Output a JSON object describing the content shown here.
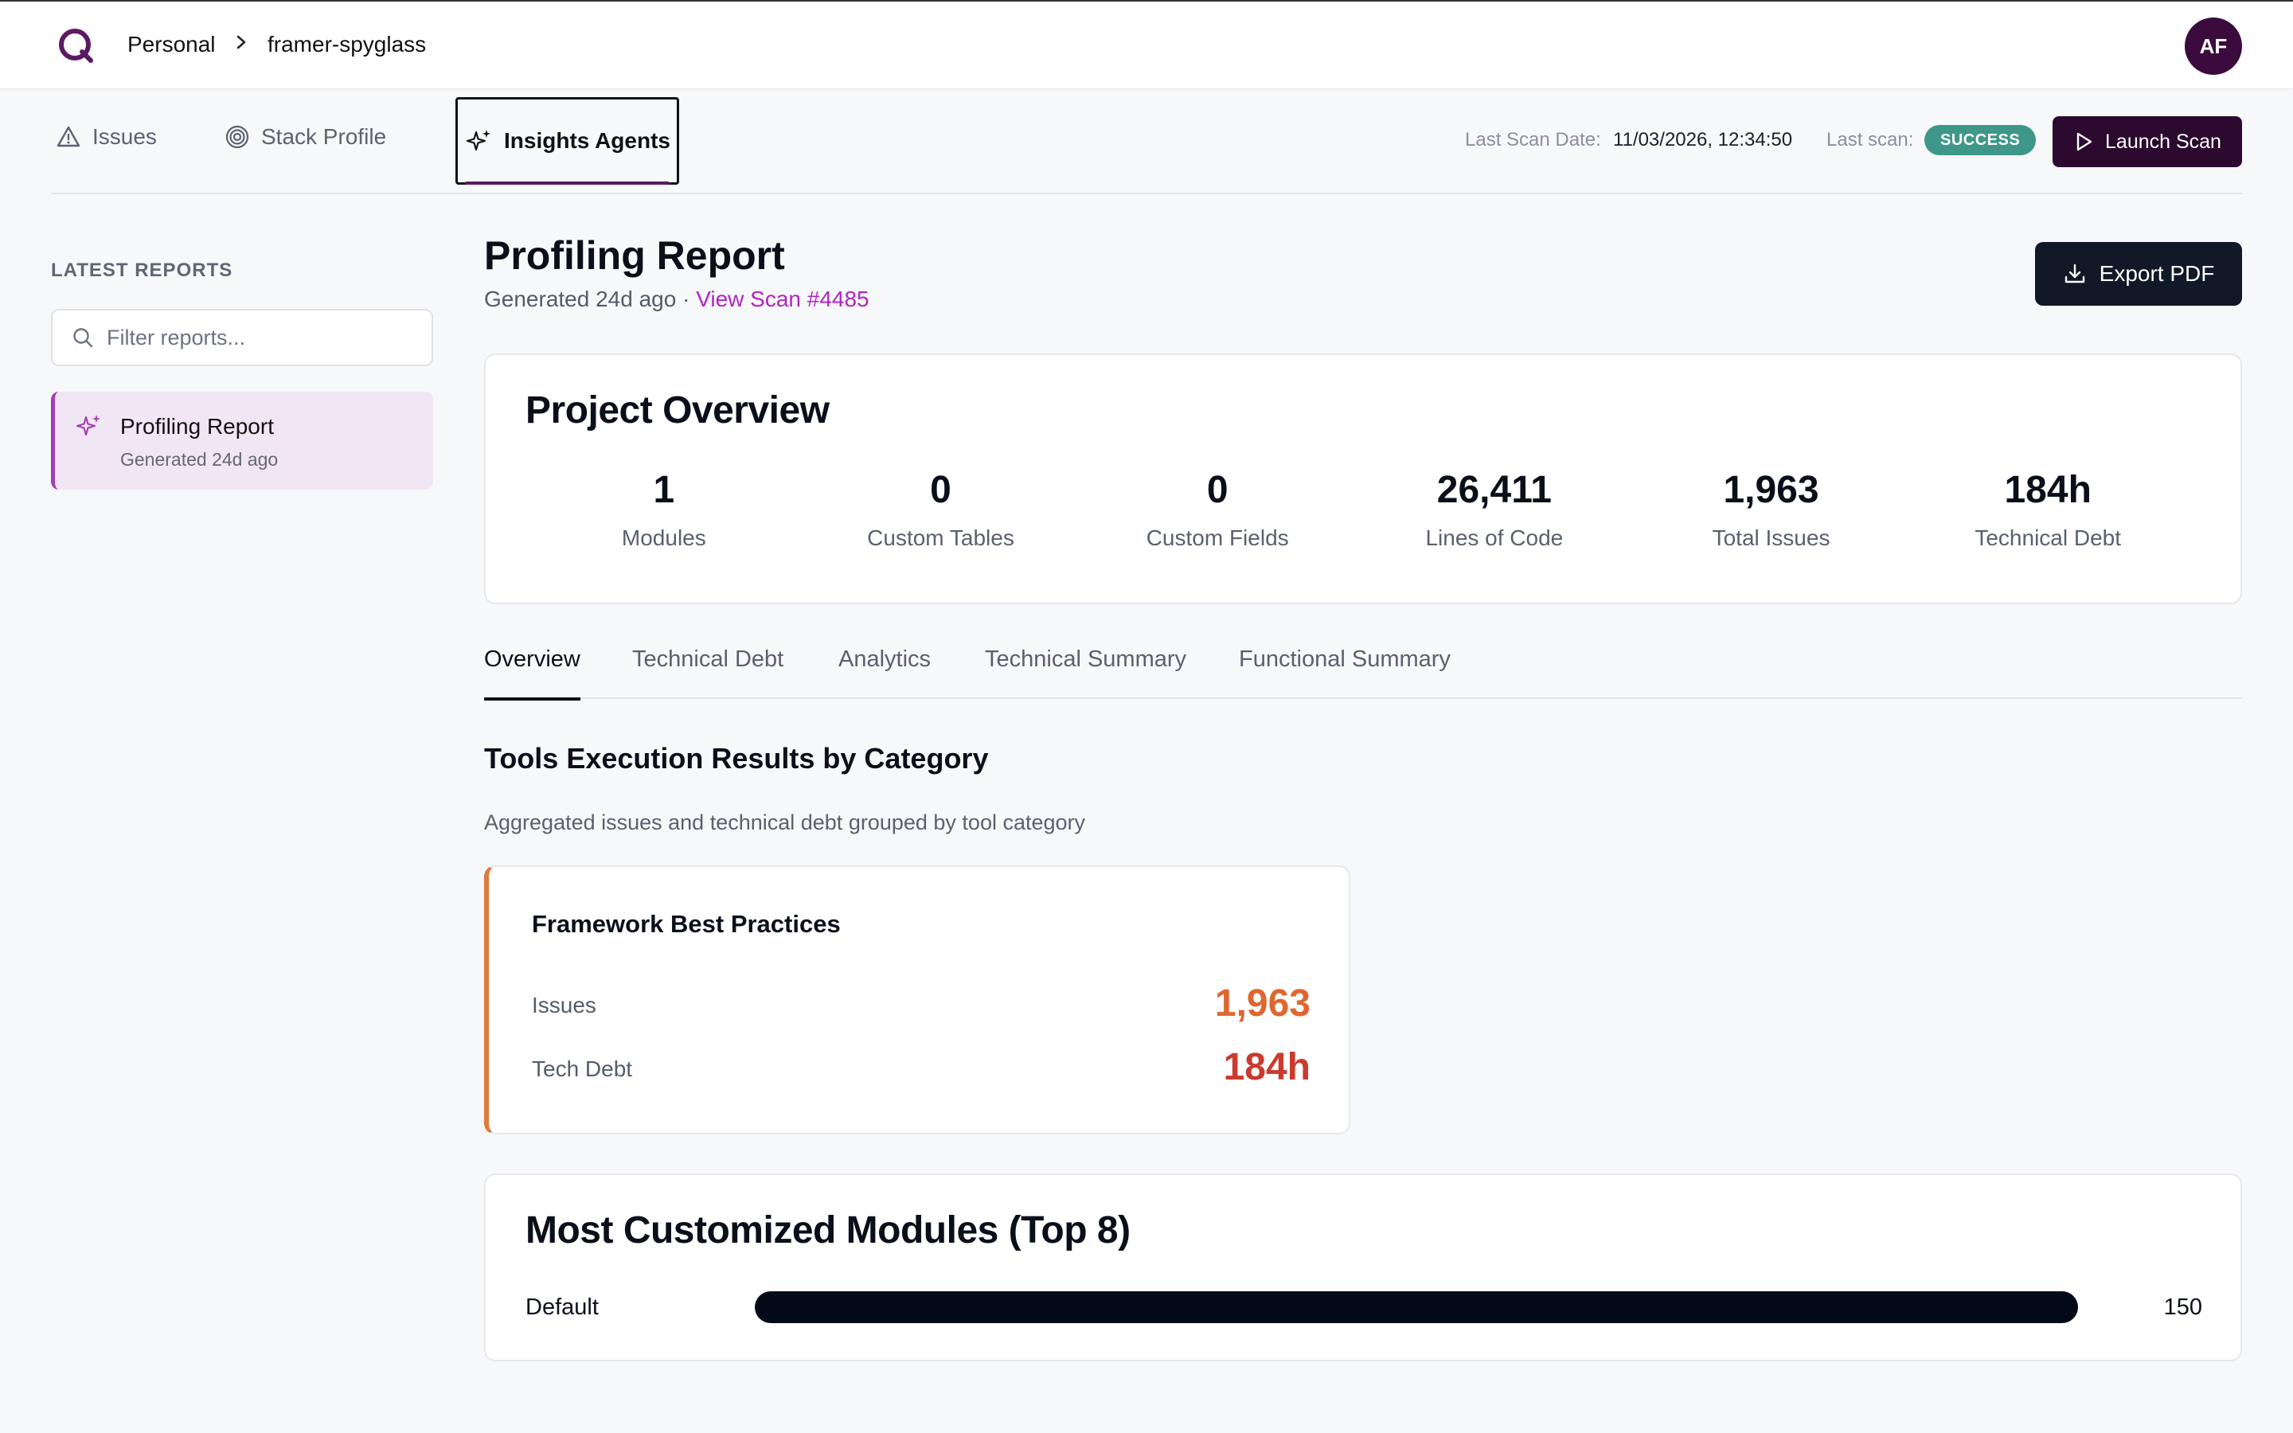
{
  "breadcrumb": {
    "workspace": "Personal",
    "project": "framer-spyglass"
  },
  "user": {
    "initials": "AF"
  },
  "nav": {
    "tabs": [
      {
        "label": "Issues",
        "icon": "warning-triangle-icon"
      },
      {
        "label": "Stack Profile",
        "icon": "target-icon"
      },
      {
        "label": "Insights Agents",
        "icon": "sparkles-icon",
        "active": true
      }
    ]
  },
  "scan": {
    "date_label": "Last Scan Date:",
    "date_value": "11/03/2026, 12:34:50",
    "status_label": "Last scan:",
    "status": "SUCCESS",
    "status_color": "#3e9788",
    "launch_label": "Launch Scan"
  },
  "sidebar": {
    "heading": "LATEST REPORTS",
    "filter_placeholder": "Filter reports...",
    "reports": [
      {
        "title": "Profiling Report",
        "subtitle": "Generated 24d ago",
        "active": true
      }
    ]
  },
  "report": {
    "title": "Profiling Report",
    "generated": "Generated 24d ago",
    "separator": " · ",
    "scan_link": "View Scan #4485",
    "export_label": "Export PDF"
  },
  "overview": {
    "title": "Project Overview",
    "stats": [
      {
        "value": "1",
        "label": "Modules"
      },
      {
        "value": "0",
        "label": "Custom Tables"
      },
      {
        "value": "0",
        "label": "Custom Fields"
      },
      {
        "value": "26,411",
        "label": "Lines of Code"
      },
      {
        "value": "1,963",
        "label": "Total Issues"
      },
      {
        "value": "184h",
        "label": "Technical Debt"
      }
    ]
  },
  "tabs": [
    {
      "label": "Overview",
      "active": true
    },
    {
      "label": "Technical Debt"
    },
    {
      "label": "Analytics"
    },
    {
      "label": "Technical Summary"
    },
    {
      "label": "Functional Summary"
    }
  ],
  "tools": {
    "title": "Tools Execution Results by Category",
    "description": "Aggregated issues and technical debt grouped by tool category",
    "categories": [
      {
        "name": "Framework Best Practices",
        "accent": "#e07a3c",
        "issues_label": "Issues",
        "issues_value": "1,963",
        "issues_color": "#e0662f",
        "debt_label": "Tech Debt",
        "debt_value": "184h",
        "debt_color": "#cc3a2e"
      }
    ]
  },
  "modules": {
    "title": "Most Customized Modules (Top 8)",
    "items": [
      {
        "name": "Default",
        "value": 150,
        "display": "150",
        "fraction": 1.0
      }
    ]
  }
}
